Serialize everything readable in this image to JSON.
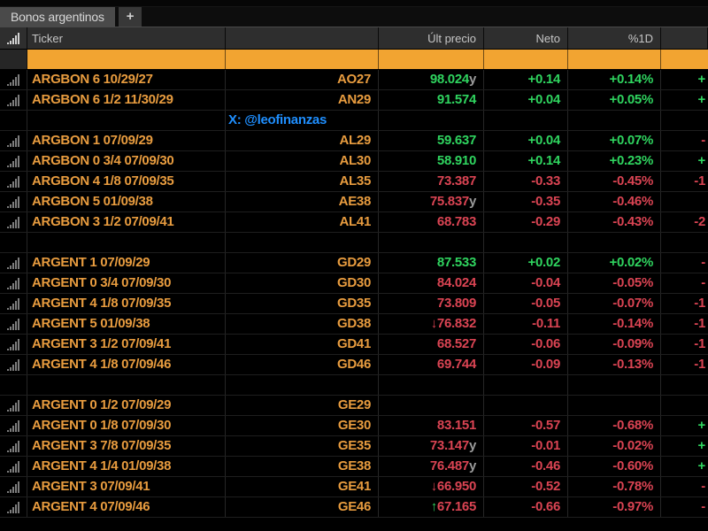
{
  "tab_bar": {
    "active_tab": "Bonos argentinos",
    "new_tab_label": "+"
  },
  "header": {
    "ticker": "Ticker",
    "last_price": "Últ precio",
    "net": "Neto",
    "pct_1d": "%1D"
  },
  "watermark": "X: @leofinanzas",
  "icons": {
    "row_indicator": "signal-bars",
    "new_tab": "plus"
  },
  "colors": {
    "up": "#2fd45f",
    "down": "#da4453",
    "amber": "#e89c3f",
    "highlight": "#f2a431",
    "suffix_gray": "#9b9b9b",
    "watermark_blue": "#1f8fff"
  },
  "rows": [
    {
      "type": "data",
      "name": "ARGBON 6 10/29/27",
      "code": "AO27",
      "price": "98.024",
      "suffix": "y",
      "arrow": "",
      "arrow_color": "",
      "price_color": "up",
      "net": "+0.14",
      "net_color": "up",
      "pct": "+0.14%",
      "pct_color": "up",
      "tail": "+",
      "tail_color": "up"
    },
    {
      "type": "data",
      "name": "ARGBON 6 1/2 11/30/29",
      "code": "AN29",
      "price": "91.574",
      "suffix": "",
      "arrow": "",
      "arrow_color": "",
      "price_color": "up",
      "net": "+0.04",
      "net_color": "up",
      "pct": "+0.05%",
      "pct_color": "up",
      "tail": "+",
      "tail_color": "up"
    },
    {
      "type": "watermark"
    },
    {
      "type": "data",
      "name": "ARGBON 1 07/09/29",
      "code": "AL29",
      "price": "59.637",
      "suffix": "",
      "arrow": "",
      "arrow_color": "",
      "price_color": "up",
      "net": "+0.04",
      "net_color": "up",
      "pct": "+0.07%",
      "pct_color": "up",
      "tail": "-",
      "tail_color": "down"
    },
    {
      "type": "data",
      "name": "ARGBON 0 3/4 07/09/30",
      "code": "AL30",
      "price": "58.910",
      "suffix": "",
      "arrow": "",
      "arrow_color": "",
      "price_color": "up",
      "net": "+0.14",
      "net_color": "up",
      "pct": "+0.23%",
      "pct_color": "up",
      "tail": "+",
      "tail_color": "up"
    },
    {
      "type": "data",
      "name": "ARGBON 4 1/8 07/09/35",
      "code": "AL35",
      "price": "73.387",
      "suffix": "",
      "arrow": "",
      "arrow_color": "",
      "price_color": "down",
      "net": "-0.33",
      "net_color": "down",
      "pct": "-0.45%",
      "pct_color": "down",
      "tail": "-1",
      "tail_color": "down"
    },
    {
      "type": "data",
      "name": "ARGBON 5 01/09/38",
      "code": "AE38",
      "price": "75.837",
      "suffix": "y",
      "arrow": "",
      "arrow_color": "",
      "price_color": "down",
      "net": "-0.35",
      "net_color": "down",
      "pct": "-0.46%",
      "pct_color": "down",
      "tail": "",
      "tail_color": "down"
    },
    {
      "type": "data",
      "name": "ARGBON 3 1/2 07/09/41",
      "code": "AL41",
      "price": "68.783",
      "suffix": "",
      "arrow": "",
      "arrow_color": "",
      "price_color": "down",
      "net": "-0.29",
      "net_color": "down",
      "pct": "-0.43%",
      "pct_color": "down",
      "tail": "-2",
      "tail_color": "down"
    },
    {
      "type": "empty"
    },
    {
      "type": "data",
      "name": "ARGENT 1 07/09/29",
      "code": "GD29",
      "price": "87.533",
      "suffix": "",
      "arrow": "",
      "arrow_color": "",
      "price_color": "up",
      "net": "+0.02",
      "net_color": "up",
      "pct": "+0.02%",
      "pct_color": "up",
      "tail": "-",
      "tail_color": "down"
    },
    {
      "type": "data",
      "name": "ARGENT 0 3/4 07/09/30",
      "code": "GD30",
      "price": "84.024",
      "suffix": "",
      "arrow": "",
      "arrow_color": "",
      "price_color": "down",
      "net": "-0.04",
      "net_color": "down",
      "pct": "-0.05%",
      "pct_color": "down",
      "tail": "-",
      "tail_color": "down"
    },
    {
      "type": "data",
      "name": "ARGENT 4 1/8 07/09/35",
      "code": "GD35",
      "price": "73.809",
      "suffix": "",
      "arrow": "",
      "arrow_color": "",
      "price_color": "down",
      "net": "-0.05",
      "net_color": "down",
      "pct": "-0.07%",
      "pct_color": "down",
      "tail": "-1",
      "tail_color": "down"
    },
    {
      "type": "data",
      "name": "ARGENT 5 01/09/38",
      "code": "GD38",
      "price": "76.832",
      "suffix": "",
      "arrow": "↓",
      "arrow_color": "down",
      "price_color": "down",
      "net": "-0.11",
      "net_color": "down",
      "pct": "-0.14%",
      "pct_color": "down",
      "tail": "-1",
      "tail_color": "down"
    },
    {
      "type": "data",
      "name": "ARGENT 3 1/2 07/09/41",
      "code": "GD41",
      "price": "68.527",
      "suffix": "",
      "arrow": "",
      "arrow_color": "",
      "price_color": "down",
      "net": "-0.06",
      "net_color": "down",
      "pct": "-0.09%",
      "pct_color": "down",
      "tail": "-1",
      "tail_color": "down"
    },
    {
      "type": "data",
      "name": "ARGENT 4 1/8 07/09/46",
      "code": "GD46",
      "price": "69.744",
      "suffix": "",
      "arrow": "",
      "arrow_color": "",
      "price_color": "down",
      "net": "-0.09",
      "net_color": "down",
      "pct": "-0.13%",
      "pct_color": "down",
      "tail": "-1",
      "tail_color": "down"
    },
    {
      "type": "empty"
    },
    {
      "type": "data",
      "name": "ARGENT 0 1/2 07/09/29",
      "code": "GE29",
      "price": "",
      "suffix": "",
      "arrow": "",
      "arrow_color": "",
      "price_color": "down",
      "net": "",
      "net_color": "down",
      "pct": "",
      "pct_color": "down",
      "tail": "",
      "tail_color": "down"
    },
    {
      "type": "data",
      "name": "ARGENT 0 1/8 07/09/30",
      "code": "GE30",
      "price": "83.151",
      "suffix": "",
      "arrow": "",
      "arrow_color": "",
      "price_color": "down",
      "net": "-0.57",
      "net_color": "down",
      "pct": "-0.68%",
      "pct_color": "down",
      "tail": "+",
      "tail_color": "up"
    },
    {
      "type": "data",
      "name": "ARGENT 3 7/8 07/09/35",
      "code": "GE35",
      "price": "73.147",
      "suffix": "y",
      "arrow": "",
      "arrow_color": "",
      "price_color": "down",
      "net": "-0.01",
      "net_color": "down",
      "pct": "-0.02%",
      "pct_color": "down",
      "tail": "+",
      "tail_color": "up"
    },
    {
      "type": "data",
      "name": "ARGENT 4 1/4 01/09/38",
      "code": "GE38",
      "price": "76.487",
      "suffix": "y",
      "arrow": "",
      "arrow_color": "",
      "price_color": "down",
      "net": "-0.46",
      "net_color": "down",
      "pct": "-0.60%",
      "pct_color": "down",
      "tail": "+",
      "tail_color": "up"
    },
    {
      "type": "data",
      "name": "ARGENT 3 07/09/41",
      "code": "GE41",
      "price": "66.950",
      "suffix": "",
      "arrow": "↓",
      "arrow_color": "down",
      "price_color": "down",
      "net": "-0.52",
      "net_color": "down",
      "pct": "-0.78%",
      "pct_color": "down",
      "tail": "-",
      "tail_color": "down"
    },
    {
      "type": "data",
      "name": "ARGENT 4 07/09/46",
      "code": "GE46",
      "price": "67.165",
      "suffix": "",
      "arrow": "↑",
      "arrow_color": "up",
      "price_color": "down",
      "net": "-0.66",
      "net_color": "down",
      "pct": "-0.97%",
      "pct_color": "down",
      "tail": "-",
      "tail_color": "down"
    }
  ]
}
